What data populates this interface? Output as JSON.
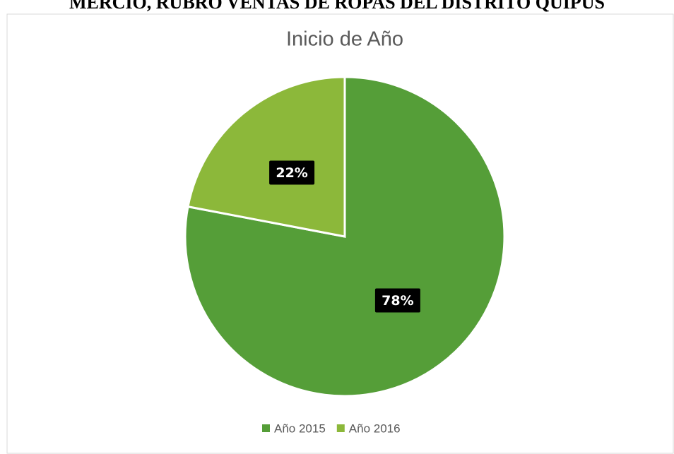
{
  "header": {
    "text": "MERCIO, RUBRO VENTAS DE ROPAS DEL DISTRITO QUIPUS"
  },
  "chart_data": {
    "type": "pie",
    "title": "Inicio de Año",
    "categories": [
      "Año 2015",
      "Año 2016"
    ],
    "values": [
      78,
      22
    ],
    "value_labels": [
      "78%",
      "22%"
    ],
    "colors": [
      "#559e38",
      "#8cb83a"
    ],
    "legend": "bottom"
  }
}
